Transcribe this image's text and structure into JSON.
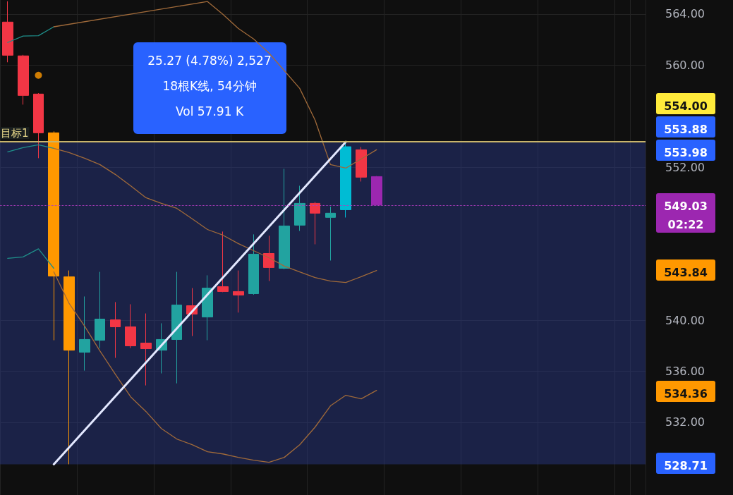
{
  "chart_data": {
    "type": "candlestick",
    "categories": [
      null,
      null,
      null,
      null,
      null,
      null,
      null,
      null,
      null,
      null,
      null,
      null,
      null,
      null,
      null,
      null,
      null,
      null,
      null,
      null,
      null,
      null,
      null,
      null,
      null,
      null,
      null,
      null,
      null,
      null,
      null,
      null,
      null,
      null,
      null,
      null,
      null,
      null,
      null,
      null,
      null,
      null
    ],
    "ohlc": [
      [
        563.37,
        565.0,
        560.22,
        560.77
      ],
      [
        560.72,
        560.8,
        556.9,
        557.62
      ],
      [
        557.73,
        557.8,
        552.7,
        554.69
      ],
      [
        554.69,
        554.8,
        538.43,
        543.46
      ],
      [
        543.4,
        543.9,
        528.71,
        537.65
      ],
      [
        537.49,
        541.86,
        536.05,
        538.49
      ],
      [
        538.43,
        543.79,
        537.82,
        540.09
      ],
      [
        540.03,
        541.42,
        537.05,
        539.48
      ],
      [
        539.48,
        541.25,
        537.82,
        537.99
      ],
      [
        538.21,
        540.53,
        534.89,
        537.77
      ],
      [
        537.65,
        539.76,
        535.83,
        538.49
      ],
      [
        538.49,
        543.79,
        535.05,
        541.19
      ],
      [
        541.14,
        542.52,
        538.76,
        540.48
      ],
      [
        540.25,
        543.52,
        538.43,
        542.52
      ],
      [
        542.63,
        546.95,
        542.2,
        542.25
      ],
      [
        542.25,
        543.9,
        540.6,
        541.97
      ],
      [
        542.08,
        546.73,
        542.0,
        545.18
      ],
      [
        545.23,
        546.62,
        543.07,
        544.13
      ],
      [
        544.07,
        551.87,
        544.0,
        547.39
      ],
      [
        547.45,
        550.54,
        547.0,
        549.16
      ],
      [
        549.16,
        549.27,
        545.95,
        548.39
      ],
      [
        548.06,
        548.9,
        544.68,
        548.39
      ],
      [
        548.66,
        553.98,
        548.05,
        553.6
      ],
      [
        553.36,
        553.58,
        550.87,
        551.21
      ],
      [
        551.26,
        551.3,
        549.03,
        549.03
      ],
      null,
      null,
      null,
      null,
      null,
      null,
      null,
      null,
      null,
      null,
      null,
      null,
      null,
      null,
      null,
      null,
      null
    ],
    "colors": [
      "#f23645",
      "#f23645",
      "#f23645",
      "#ff9800",
      "#ff9800",
      "#22a3a0",
      "#22a3a0",
      "#f23645",
      "#f23645",
      "#f23645",
      "#22a3a0",
      "#22a3a0",
      "#f23645",
      "#22a3a0",
      "#f23645",
      "#f23645",
      "#22a3a0",
      "#f23645",
      "#22a3a0",
      "#22a3a0",
      "#f23645",
      "#22a3a0",
      "#00bcd4",
      "#f23645",
      "#9c27b0",
      null,
      null,
      null,
      null,
      null,
      null,
      null,
      null,
      null,
      null,
      null,
      null,
      null,
      null,
      null,
      null,
      null
    ],
    "series": [
      {
        "type": "line",
        "color": "#1f8f8a",
        "values": [
          561.77,
          562.27,
          562.3,
          563.0,
          null,
          null,
          null,
          null,
          null,
          null,
          null,
          null,
          null,
          null,
          null,
          null,
          null,
          null,
          null,
          null,
          null,
          null,
          null,
          null,
          null,
          null,
          null,
          null,
          null,
          null,
          null,
          null,
          null,
          null,
          null,
          null,
          null,
          null,
          null,
          null,
          null,
          null
        ]
      },
      {
        "type": "line",
        "color": "#1f8f8a",
        "values": [
          553.2,
          553.53,
          553.75,
          553.47,
          null,
          null,
          null,
          null,
          null,
          null,
          null,
          null,
          null,
          null,
          null,
          null,
          null,
          null,
          null,
          null,
          null,
          null,
          null,
          null,
          null,
          null,
          null,
          null,
          null,
          null,
          null,
          null,
          null,
          null,
          null,
          null,
          null,
          null,
          null,
          null,
          null,
          null
        ]
      },
      {
        "type": "line",
        "color": "#1f8f8a",
        "values": [
          544.85,
          544.96,
          545.6,
          544.07,
          null,
          null,
          null,
          null,
          null,
          null,
          null,
          null,
          null,
          null,
          null,
          null,
          null,
          null,
          null,
          null,
          null,
          null,
          null,
          null,
          null,
          null,
          null,
          null,
          null,
          null,
          null,
          null,
          null,
          null,
          null,
          null,
          null,
          null,
          null,
          null,
          null,
          null
        ]
      },
      {
        "type": "line",
        "color": "#a06a3a",
        "values": [
          null,
          null,
          null,
          563.0,
          null,
          null,
          null,
          null,
          null,
          null,
          null,
          null,
          null,
          564.98,
          563.98,
          562.88,
          562.05,
          560.94,
          559.56,
          558.17,
          555.69,
          552.2,
          551.92,
          552.64,
          553.36,
          null,
          null,
          null,
          null,
          null,
          null,
          null,
          null,
          null,
          null,
          null,
          null,
          null,
          null,
          null,
          null,
          null
        ]
      },
      {
        "type": "line",
        "color": "#a06a3a",
        "values": [
          null,
          null,
          null,
          553.47,
          553.14,
          552.7,
          552.2,
          551.43,
          550.54,
          549.6,
          549.16,
          548.77,
          547.95,
          547.11,
          546.67,
          546.01,
          545.45,
          544.9,
          544.24,
          543.79,
          543.35,
          543.07,
          542.96,
          543.41,
          543.9,
          null,
          null,
          null,
          null,
          null,
          null,
          null,
          null,
          null,
          null,
          null,
          null,
          null,
          null,
          null,
          null,
          null
        ]
      },
      {
        "type": "line",
        "color": "#a06a3a",
        "values": [
          null,
          null,
          null,
          543.79,
          541.31,
          539.54,
          537.6,
          535.77,
          534.0,
          532.84,
          531.51,
          530.69,
          530.24,
          529.69,
          529.52,
          529.25,
          529.03,
          528.86,
          529.25,
          530.24,
          531.62,
          533.29,
          534.12,
          533.84,
          534.5,
          null,
          null,
          null,
          null,
          null,
          null,
          null,
          null,
          null,
          null,
          null,
          null,
          null,
          null,
          null,
          null,
          null
        ]
      },
      {
        "type": "line",
        "color": "#e3e8ff",
        "values": [
          null,
          null,
          null,
          528.71,
          null,
          null,
          null,
          null,
          null,
          null,
          null,
          null,
          null,
          null,
          null,
          null,
          null,
          null,
          null,
          null,
          null,
          null,
          553.98,
          null,
          null,
          null,
          null,
          null,
          null,
          null,
          null,
          null,
          null,
          null,
          null,
          null,
          null,
          null,
          null,
          null,
          null,
          null
        ]
      },
      {
        "type": "scatter",
        "color": "#ff9800",
        "values": [
          null,
          null,
          559.2,
          null,
          null,
          null,
          null,
          null,
          null,
          null,
          null,
          null,
          null,
          null,
          null,
          null,
          null,
          null,
          null,
          null,
          null,
          null,
          null,
          null,
          null,
          null,
          null,
          null,
          null,
          null,
          null,
          null,
          null,
          null,
          null,
          null,
          null,
          null,
          null,
          null,
          null,
          null
        ]
      }
    ],
    "ylim": [
      526.3,
      565.1
    ],
    "yticks": [
      {
        "value": 532,
        "label": "532.00"
      },
      {
        "value": 536,
        "label": "536.00"
      },
      {
        "value": 540,
        "label": "540.00"
      },
      {
        "value": 552,
        "label": "552.00"
      },
      {
        "value": 560,
        "label": "560.00"
      },
      {
        "value": 564,
        "label": "564.00"
      }
    ],
    "grid": true,
    "bands": [
      {
        "axis": "y",
        "from": 528.71,
        "to": 553.98,
        "color": "#2b3a8c"
      }
    ],
    "ref_lines": [
      {
        "axis": "y",
        "value": 553.98,
        "label": "目标1",
        "color": "#c8b46a"
      },
      {
        "axis": "y",
        "value": 549.03,
        "color": "#b03cc0",
        "line_style": "dotted"
      }
    ],
    "annotations": [
      "25.27 (4.78%) 2,527",
      "18根K线, 54分钟",
      "Vol 57.91 K",
      "554.00",
      "553.88",
      "553.98",
      "549.03\n02:22",
      "543.84",
      "534.36",
      "528.71"
    ]
  }
}
